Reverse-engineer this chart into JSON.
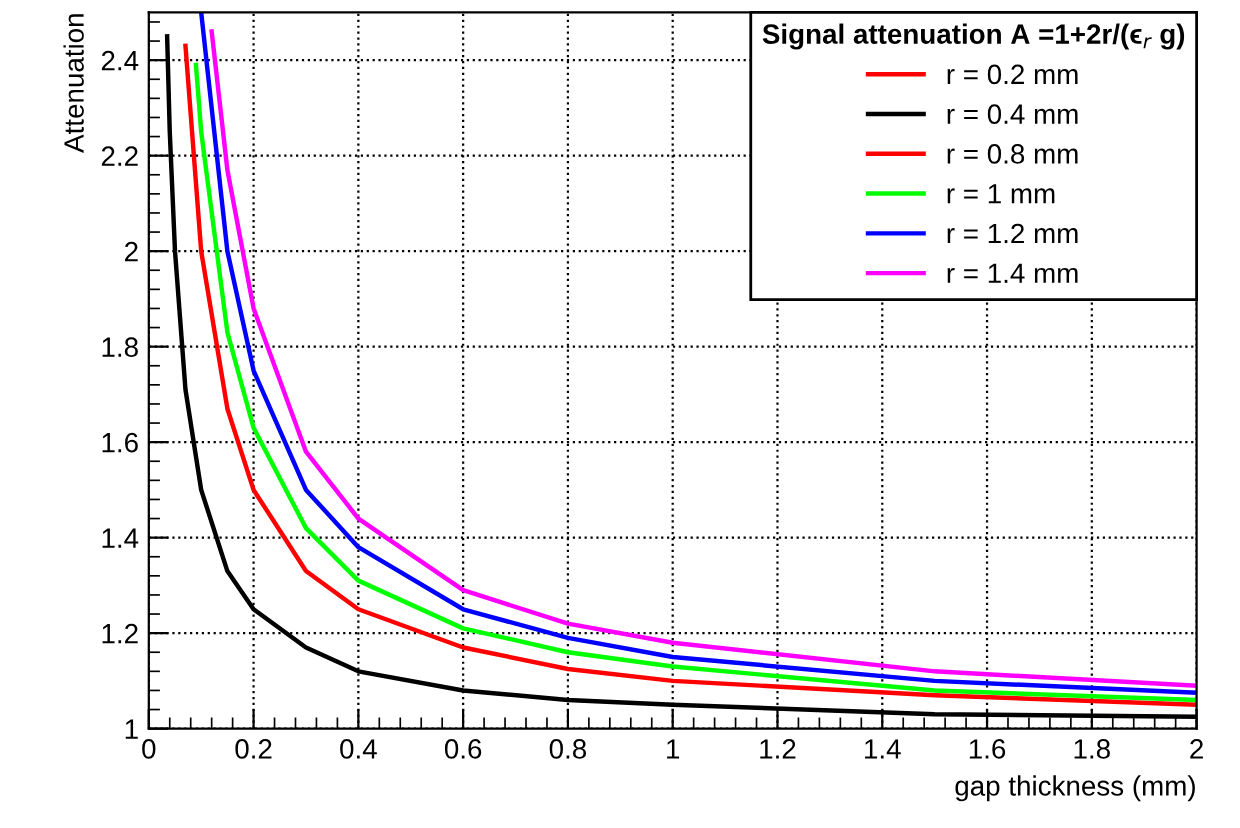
{
  "chart_data": {
    "type": "line",
    "xlabel": "gap thickness (mm)",
    "ylabel": "Attenuation",
    "legend_title": "Signal attenuation A =1+2r/(ϵ$_{r}$ g)",
    "xlim": [
      0,
      2
    ],
    "xticks": [
      0,
      0.2,
      0.4,
      0.6,
      0.8,
      1,
      1.2,
      1.4,
      1.6,
      1.8,
      2
    ],
    "ylim": [
      1,
      2.5
    ],
    "yticks": [
      1,
      1.2,
      1.4,
      1.6,
      1.8,
      2,
      2.2,
      2.4
    ],
    "grid": true,
    "legend": "top right",
    "line_style": "solid",
    "marker": "none",
    "series": [
      {
        "name": "r = 0.2 mm",
        "color": "#ff0000"
      },
      {
        "name": "r = 0.4 mm",
        "color": "#000000",
        "x": [
          0.035,
          0.04,
          0.05,
          0.07,
          0.1,
          0.15,
          0.2,
          0.3,
          0.4,
          0.6,
          0.8,
          1,
          1.5,
          2
        ],
        "values": [
          2.45,
          2.25,
          2.0,
          1.71,
          1.5,
          1.33,
          1.25,
          1.17,
          1.12,
          1.08,
          1.06,
          1.05,
          1.03,
          1.025
        ]
      },
      {
        "name": "r = 0.8 mm",
        "color": "#ff0000",
        "x": [
          0.07,
          0.1,
          0.15,
          0.2,
          0.3,
          0.4,
          0.6,
          0.8,
          1,
          1.5,
          2
        ],
        "values": [
          2.43,
          2.0,
          1.67,
          1.5,
          1.33,
          1.25,
          1.17,
          1.125,
          1.1,
          1.07,
          1.05
        ]
      },
      {
        "name": "r = 1 mm",
        "color": "#00ff00",
        "x": [
          0.09,
          0.1,
          0.15,
          0.2,
          0.3,
          0.4,
          0.6,
          0.8,
          1,
          1.5,
          2
        ],
        "values": [
          2.39,
          2.25,
          1.83,
          1.63,
          1.42,
          1.31,
          1.21,
          1.16,
          1.13,
          1.08,
          1.06
        ]
      },
      {
        "name": "r = 1.2 mm",
        "color": "#0000ff",
        "x": [
          0.1,
          0.15,
          0.2,
          0.3,
          0.4,
          0.6,
          0.8,
          1,
          1.5,
          2
        ],
        "values": [
          2.5,
          2.0,
          1.75,
          1.5,
          1.38,
          1.25,
          1.19,
          1.15,
          1.1,
          1.075
        ]
      },
      {
        "name": "r = 1.4 mm",
        "color": "#ff00ff",
        "x": [
          0.12,
          0.15,
          0.2,
          0.3,
          0.4,
          0.6,
          0.8,
          1,
          1.5,
          2
        ],
        "values": [
          2.46,
          2.17,
          1.88,
          1.58,
          1.44,
          1.29,
          1.22,
          1.18,
          1.12,
          1.09
        ]
      }
    ]
  }
}
